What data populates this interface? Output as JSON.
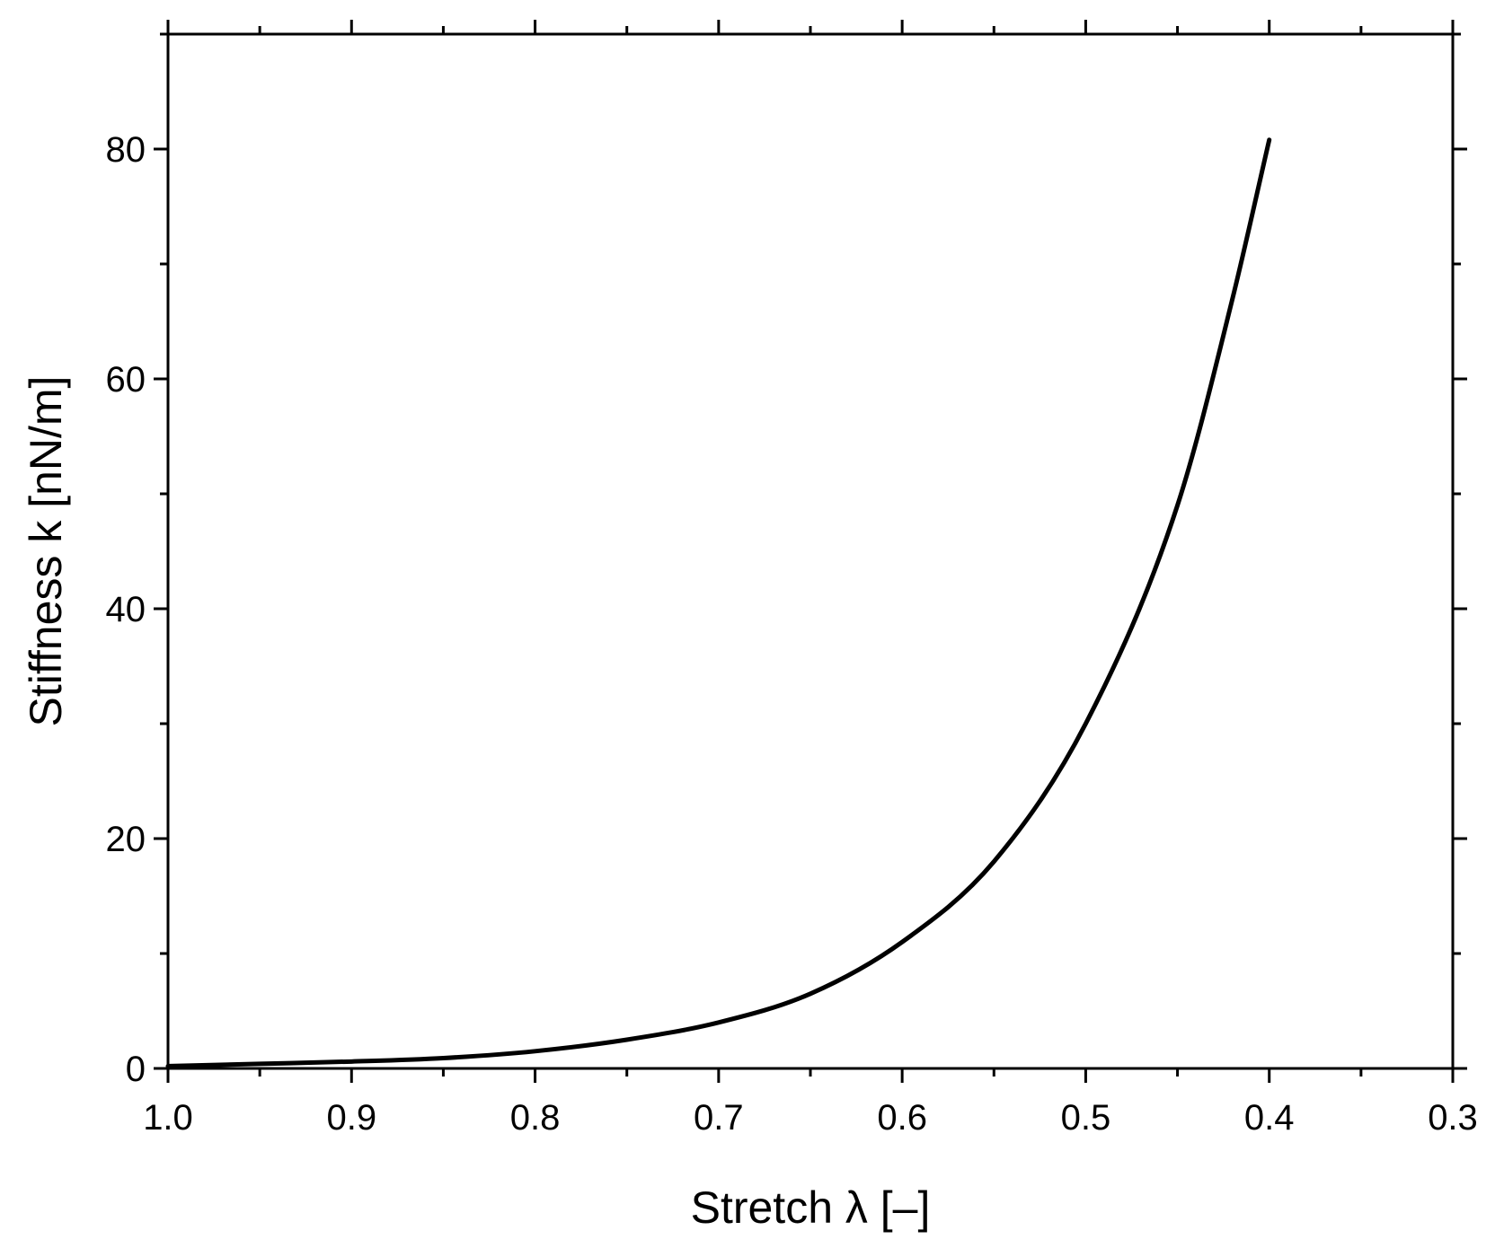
{
  "chart_data": {
    "type": "line",
    "title": "",
    "xlabel": "Stretch λ [–]",
    "ylabel": "Stiffness k [nN/m]",
    "xlim": [
      1.0,
      0.3
    ],
    "ylim": [
      0,
      90
    ],
    "x_axis_reversed": true,
    "grid": false,
    "legend": "none",
    "x_ticks": [
      "1.0",
      "0.9",
      "0.8",
      "0.7",
      "0.6",
      "0.5",
      "0.4",
      "0.3"
    ],
    "y_ticks": [
      "0",
      "20",
      "40",
      "60",
      "80"
    ],
    "colors": {
      "line": "#000000",
      "axes": "#000000",
      "background": "#ffffff"
    },
    "series": [
      {
        "x": [
          1.0,
          0.95,
          0.9,
          0.85,
          0.8,
          0.75,
          0.7,
          0.65,
          0.6,
          0.55,
          0.5,
          0.45,
          0.42,
          0.4
        ],
        "y": [
          0.2,
          0.4,
          0.6,
          0.9,
          1.5,
          2.5,
          4.0,
          6.5,
          11.0,
          18.0,
          30.0,
          49.0,
          67.0,
          80.8
        ]
      }
    ]
  }
}
